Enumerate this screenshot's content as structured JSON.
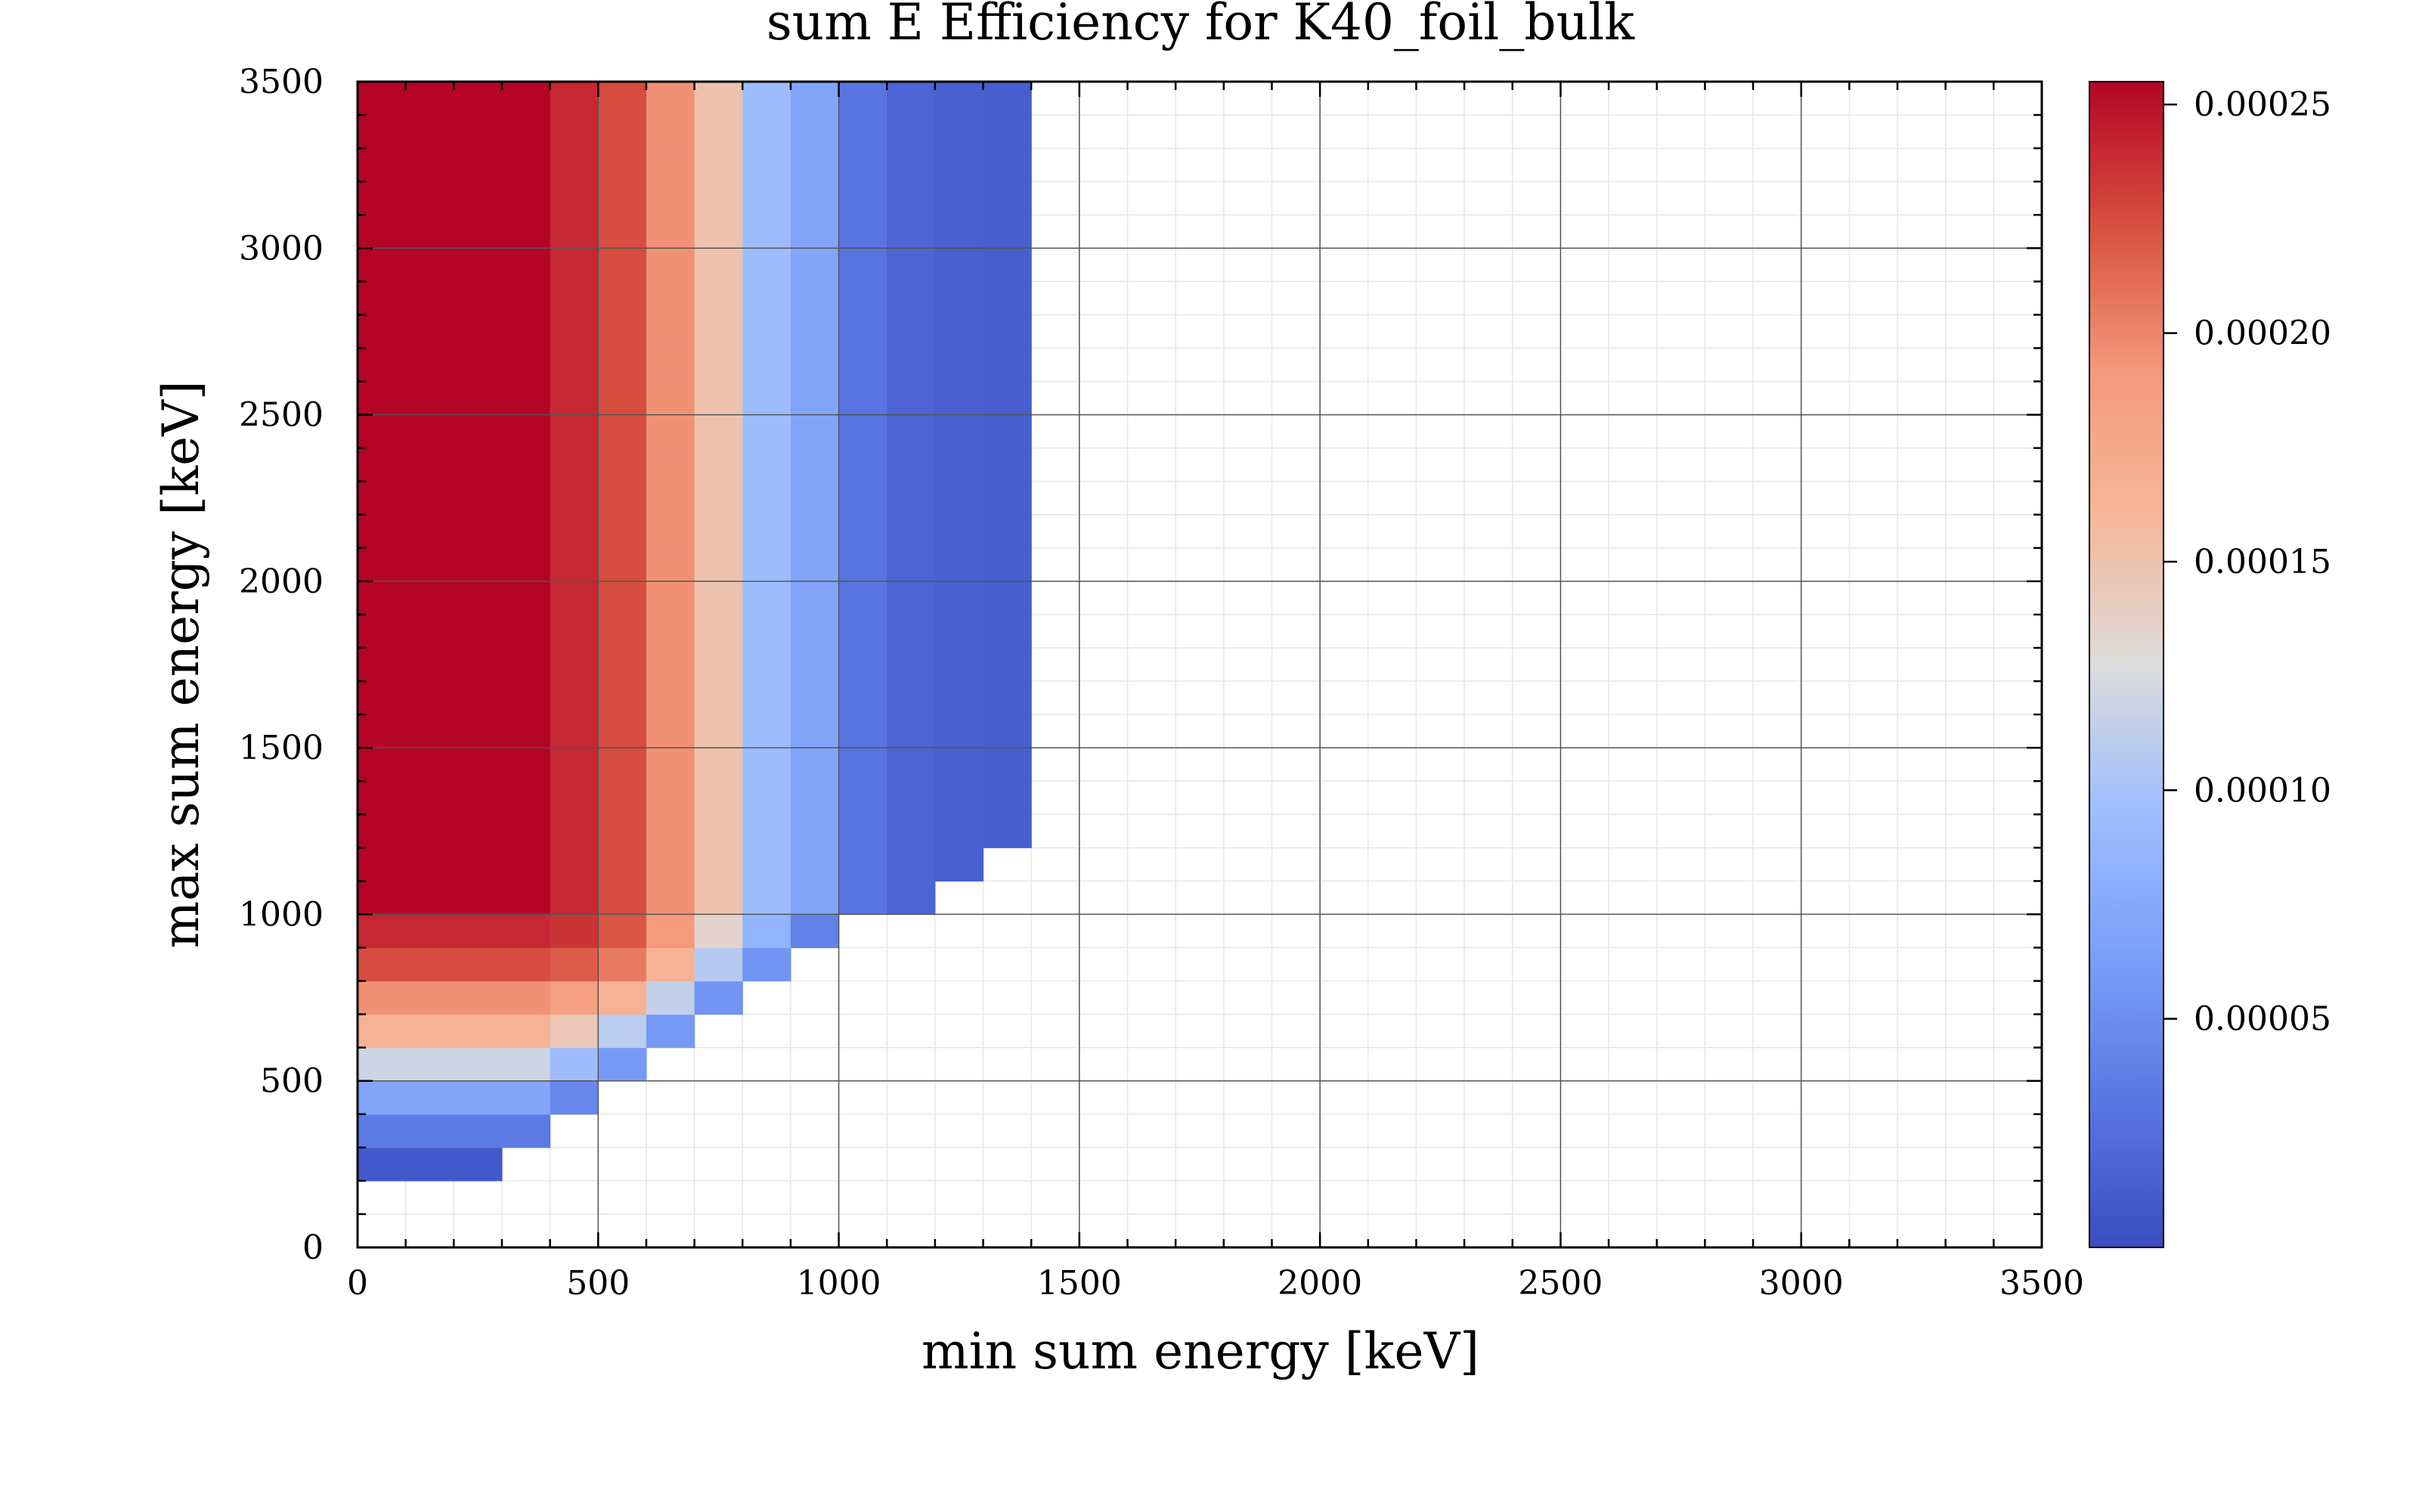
{
  "chart_data": {
    "type": "heatmap",
    "title": "sum E Efficiency for K40_foil_bulk",
    "xlabel": "min sum energy [keV]",
    "ylabel": "max sum energy [keV]",
    "xlim": [
      0,
      3500
    ],
    "ylim": [
      0,
      3500
    ],
    "bin_width": 100,
    "x_ticks": [
      0,
      500,
      1000,
      1500,
      2000,
      2500,
      3000,
      3500
    ],
    "y_ticks": [
      0,
      500,
      1000,
      1500,
      2000,
      2500,
      3000,
      3500
    ],
    "x_tick_labels": [
      "0",
      "500",
      "1000",
      "1500",
      "2000",
      "2500",
      "3000",
      "3500"
    ],
    "y_tick_labels": [
      "0",
      "500",
      "1000",
      "1500",
      "2000",
      "2500",
      "3000",
      "3500"
    ],
    "grid": true,
    "colormap": "coolwarm",
    "colorbar": {
      "range": [
        0.0,
        0.000255
      ],
      "ticks": [
        5e-05,
        0.0001,
        0.00015,
        0.0002,
        0.00025
      ],
      "tick_labels": [
        "0.00005",
        "0.00010",
        "0.00015",
        "0.00020",
        "0.00025"
      ]
    },
    "cells_note": "values[r][c]: efficiency for min energy bin c (100 keV wide, starting at 0) and max energy bin r (starting at 200 keV), null = empty",
    "y_bins_start": 200,
    "x_bins_start": 0,
    "values": [
      [
        1e-05,
        1e-05,
        1e-05,
        null,
        null,
        null,
        null,
        null,
        null,
        null,
        null,
        null,
        null,
        null
      ],
      [
        3.5e-05,
        3.5e-05,
        3.5e-05,
        3.5e-05,
        null,
        null,
        null,
        null,
        null,
        null,
        null,
        null,
        null,
        null
      ],
      [
        7e-05,
        7e-05,
        7e-05,
        7e-05,
        4.5e-05,
        null,
        null,
        null,
        null,
        null,
        null,
        null,
        null,
        null
      ],
      [
        0.00012,
        0.00012,
        0.00012,
        0.00012,
        9.5e-05,
        6e-05,
        null,
        null,
        null,
        null,
        null,
        null,
        null,
        null
      ],
      [
        0.000165,
        0.000165,
        0.000165,
        0.000165,
        0.000145,
        0.00011,
        6e-05,
        null,
        null,
        null,
        null,
        null,
        null,
        null
      ],
      [
        0.000195,
        0.000195,
        0.000195,
        0.000195,
        0.000185,
        0.000165,
        0.000115,
        5.5e-05,
        null,
        null,
        null,
        null,
        null,
        null
      ],
      [
        0.000225,
        0.000225,
        0.000225,
        0.000225,
        0.000218,
        0.000205,
        0.000165,
        0.000108,
        5.5e-05,
        null,
        null,
        null,
        null,
        null
      ],
      [
        0.00024,
        0.00024,
        0.00024,
        0.00024,
        0.000235,
        0.00022,
        0.00019,
        0.000135,
        8.5e-05,
        4e-05,
        null,
        null,
        null,
        null
      ],
      [
        0.000255,
        0.000255,
        0.000255,
        0.000255,
        0.00024,
        0.000225,
        0.000195,
        0.00015,
        9.5e-05,
        7e-05,
        3e-05,
        1.8e-05,
        null,
        null
      ],
      [
        0.000255,
        0.000255,
        0.000255,
        0.000255,
        0.00024,
        0.000225,
        0.000195,
        0.00015,
        9.5e-05,
        7e-05,
        3e-05,
        1.8e-05,
        1.5e-05,
        null
      ],
      [
        0.000255,
        0.000255,
        0.000255,
        0.000255,
        0.00024,
        0.000225,
        0.000195,
        0.00015,
        9.5e-05,
        7e-05,
        3e-05,
        1.8e-05,
        1.5e-05,
        1.3e-05
      ],
      [
        0.000255,
        0.000255,
        0.000255,
        0.000255,
        0.00024,
        0.000225,
        0.000195,
        0.00015,
        9.5e-05,
        7e-05,
        3e-05,
        1.8e-05,
        1.5e-05,
        1.3e-05
      ],
      [
        0.000255,
        0.000255,
        0.000255,
        0.000255,
        0.00024,
        0.000225,
        0.000195,
        0.00015,
        9.5e-05,
        7e-05,
        3e-05,
        1.8e-05,
        1.5e-05,
        1.3e-05
      ],
      [
        0.000255,
        0.000255,
        0.000255,
        0.000255,
        0.00024,
        0.000225,
        0.000195,
        0.00015,
        9.5e-05,
        7e-05,
        3e-05,
        1.8e-05,
        1.5e-05,
        1.3e-05
      ],
      [
        0.000255,
        0.000255,
        0.000255,
        0.000255,
        0.00024,
        0.000225,
        0.000195,
        0.00015,
        9.5e-05,
        7e-05,
        3e-05,
        1.8e-05,
        1.5e-05,
        1.3e-05
      ],
      [
        0.000255,
        0.000255,
        0.000255,
        0.000255,
        0.00024,
        0.000225,
        0.000195,
        0.00015,
        9.5e-05,
        7e-05,
        3e-05,
        1.8e-05,
        1.5e-05,
        1.3e-05
      ],
      [
        0.000255,
        0.000255,
        0.000255,
        0.000255,
        0.00024,
        0.000225,
        0.000195,
        0.00015,
        9.5e-05,
        7e-05,
        3e-05,
        1.8e-05,
        1.5e-05,
        1.3e-05
      ],
      [
        0.000255,
        0.000255,
        0.000255,
        0.000255,
        0.00024,
        0.000225,
        0.000195,
        0.00015,
        9.5e-05,
        7e-05,
        3e-05,
        1.8e-05,
        1.5e-05,
        1.3e-05
      ],
      [
        0.000255,
        0.000255,
        0.000255,
        0.000255,
        0.00024,
        0.000225,
        0.000195,
        0.00015,
        9.5e-05,
        7e-05,
        3e-05,
        1.8e-05,
        1.5e-05,
        1.3e-05
      ],
      [
        0.000255,
        0.000255,
        0.000255,
        0.000255,
        0.00024,
        0.000225,
        0.000195,
        0.00015,
        9.5e-05,
        7e-05,
        3e-05,
        1.8e-05,
        1.5e-05,
        1.3e-05
      ],
      [
        0.000255,
        0.000255,
        0.000255,
        0.000255,
        0.00024,
        0.000225,
        0.000195,
        0.00015,
        9.5e-05,
        7e-05,
        3e-05,
        1.8e-05,
        1.5e-05,
        1.3e-05
      ],
      [
        0.000255,
        0.000255,
        0.000255,
        0.000255,
        0.00024,
        0.000225,
        0.000195,
        0.00015,
        9.5e-05,
        7e-05,
        3e-05,
        1.8e-05,
        1.5e-05,
        1.3e-05
      ],
      [
        0.000255,
        0.000255,
        0.000255,
        0.000255,
        0.00024,
        0.000225,
        0.000195,
        0.00015,
        9.5e-05,
        7e-05,
        3e-05,
        1.8e-05,
        1.5e-05,
        1.3e-05
      ],
      [
        0.000255,
        0.000255,
        0.000255,
        0.000255,
        0.00024,
        0.000225,
        0.000195,
        0.00015,
        9.5e-05,
        7e-05,
        3e-05,
        1.8e-05,
        1.5e-05,
        1.3e-05
      ],
      [
        0.000255,
        0.000255,
        0.000255,
        0.000255,
        0.00024,
        0.000225,
        0.000195,
        0.00015,
        9.5e-05,
        7e-05,
        3e-05,
        1.8e-05,
        1.5e-05,
        1.3e-05
      ],
      [
        0.000255,
        0.000255,
        0.000255,
        0.000255,
        0.00024,
        0.000225,
        0.000195,
        0.00015,
        9.5e-05,
        7e-05,
        3e-05,
        1.8e-05,
        1.5e-05,
        1.3e-05
      ],
      [
        0.000255,
        0.000255,
        0.000255,
        0.000255,
        0.00024,
        0.000225,
        0.000195,
        0.00015,
        9.5e-05,
        7e-05,
        3e-05,
        1.8e-05,
        1.5e-05,
        1.3e-05
      ],
      [
        0.000255,
        0.000255,
        0.000255,
        0.000255,
        0.00024,
        0.000225,
        0.000195,
        0.00015,
        9.5e-05,
        7e-05,
        3e-05,
        1.8e-05,
        1.5e-05,
        1.3e-05
      ],
      [
        0.000255,
        0.000255,
        0.000255,
        0.000255,
        0.00024,
        0.000225,
        0.000195,
        0.00015,
        9.5e-05,
        7e-05,
        3e-05,
        1.8e-05,
        1.5e-05,
        1.3e-05
      ],
      [
        0.000255,
        0.000255,
        0.000255,
        0.000255,
        0.00024,
        0.000225,
        0.000195,
        0.00015,
        9.5e-05,
        7e-05,
        3e-05,
        1.8e-05,
        1.5e-05,
        1.3e-05
      ],
      [
        0.000255,
        0.000255,
        0.000255,
        0.000255,
        0.00024,
        0.000225,
        0.000195,
        0.00015,
        9.5e-05,
        7e-05,
        3e-05,
        1.8e-05,
        1.5e-05,
        1.3e-05
      ],
      [
        0.000255,
        0.000255,
        0.000255,
        0.000255,
        0.00024,
        0.000225,
        0.000195,
        0.00015,
        9.5e-05,
        7e-05,
        3e-05,
        1.8e-05,
        1.5e-05,
        1.3e-05
      ],
      [
        0.000255,
        0.000255,
        0.000255,
        0.000255,
        0.00024,
        0.000225,
        0.000195,
        0.00015,
        9.5e-05,
        7e-05,
        3e-05,
        1.8e-05,
        1.5e-05,
        1.3e-05
      ]
    ]
  }
}
